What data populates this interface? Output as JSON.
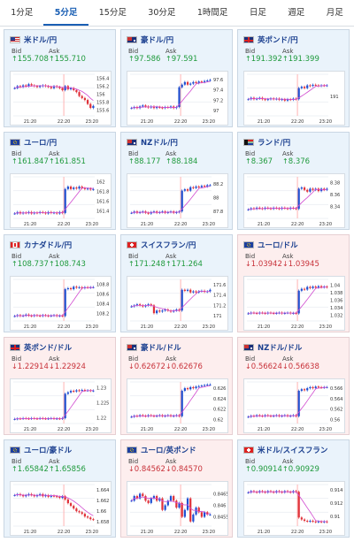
{
  "tabs": [
    {
      "label": "1分足",
      "active": false
    },
    {
      "label": "5分足",
      "active": true
    },
    {
      "label": "15分足",
      "active": false
    },
    {
      "label": "30分足",
      "active": false
    },
    {
      "label": "1時間足",
      "active": false
    },
    {
      "label": "日足",
      "active": false
    },
    {
      "label": "週足",
      "active": false
    },
    {
      "label": "月足",
      "active": false
    }
  ],
  "labels": {
    "bid": "Bid",
    "ask": "Ask"
  },
  "colors": {
    "up": "#1f9a3d",
    "down": "#c8323a",
    "up_bg": "#eaf3fb",
    "down_bg": "#fdeeee",
    "candle_up": "#1f4fd1",
    "candle_down": "#e0323a",
    "ma": "#d14bd0"
  },
  "cards": [
    {
      "pair": "米ドル/円",
      "flag": "us",
      "dir": "up",
      "bid": "155.708",
      "ask": "155.710",
      "chart_data": {
        "type": "candlestick",
        "x_ticks": [
          "21:20",
          "22:20",
          "23:20"
        ],
        "y_ticks": [
          "156.4",
          "156.2",
          "156",
          "155.8",
          "155.6"
        ],
        "ylim": [
          155.45,
          156.5
        ],
        "values": [
          156.15,
          156.2,
          156.18,
          156.22,
          156.2,
          156.25,
          156.22,
          156.2,
          156.18,
          156.2,
          156.22,
          156.2,
          156.18,
          156.15,
          156.2,
          156.18,
          156.15,
          156.1,
          156.2,
          156.12,
          156.15,
          156.1,
          156.05,
          155.95,
          155.9,
          155.85,
          155.75,
          155.65,
          155.7
        ]
      }
    },
    {
      "pair": "豪ドル/円",
      "flag": "au",
      "dir": "up",
      "bid": "97.586",
      "ask": "97.591",
      "chart_data": {
        "type": "candlestick",
        "x_ticks": [
          "21:20",
          "22:20",
          "23:20"
        ],
        "y_ticks": [
          "97.6",
          "97.4",
          "97.2",
          "97"
        ],
        "ylim": [
          96.9,
          97.7
        ],
        "values": [
          97.05,
          97.07,
          97.05,
          97.08,
          97.1,
          97.08,
          97.06,
          97.08,
          97.05,
          97.07,
          97.06,
          97.05,
          97.07,
          97.06,
          97.08,
          97.05,
          97.07,
          97.45,
          97.5,
          97.55,
          97.5,
          97.52,
          97.55,
          97.53,
          97.56,
          97.55,
          97.57,
          97.58,
          97.59
        ]
      }
    },
    {
      "pair": "英ポンド/円",
      "flag": "gb",
      "dir": "up",
      "bid": "191.392",
      "ask": "191.399",
      "chart_data": {
        "type": "candlestick",
        "x_ticks": [
          "21:20",
          "22:20",
          "23:20"
        ],
        "y_ticks": [
          "191"
        ],
        "ylim": [
          190.3,
          191.8
        ],
        "values": [
          190.9,
          190.95,
          190.9,
          190.92,
          190.95,
          190.9,
          190.88,
          190.9,
          190.93,
          190.9,
          190.92,
          190.88,
          190.9,
          190.85,
          190.9,
          190.88,
          190.92,
          190.9,
          191.3,
          191.35,
          191.3,
          191.4,
          191.38,
          191.42,
          191.4,
          191.38,
          191.4,
          191.39,
          191.4
        ]
      }
    },
    {
      "pair": "ユーロ/円",
      "flag": "eu",
      "dir": "up",
      "bid": "161.847",
      "ask": "161.851",
      "chart_data": {
        "type": "candlestick",
        "x_ticks": [
          "21:20",
          "22:20",
          "23:20"
        ],
        "y_ticks": [
          "162",
          "161.8",
          "161.6",
          "161.4"
        ],
        "ylim": [
          161.25,
          162.1
        ],
        "values": [
          161.35,
          161.38,
          161.35,
          161.37,
          161.36,
          161.38,
          161.35,
          161.37,
          161.36,
          161.38,
          161.37,
          161.35,
          161.38,
          161.36,
          161.37,
          161.35,
          161.38,
          161.36,
          161.85,
          161.9,
          161.85,
          161.88,
          161.86,
          161.9,
          161.87,
          161.85,
          161.86,
          161.84,
          161.85
        ]
      }
    },
    {
      "pair": "NZドル/円",
      "flag": "nz",
      "dir": "up",
      "bid": "88.177",
      "ask": "88.184",
      "chart_data": {
        "type": "candlestick",
        "x_ticks": [
          "21:20",
          "22:20",
          "23:20"
        ],
        "y_ticks": [
          "88.2",
          "88",
          "87.8"
        ],
        "ylim": [
          87.7,
          88.3
        ],
        "values": [
          87.78,
          87.8,
          87.78,
          87.79,
          87.8,
          87.78,
          87.77,
          87.79,
          87.8,
          87.78,
          87.79,
          87.8,
          87.78,
          87.79,
          87.8,
          87.78,
          87.79,
          87.8,
          88.1,
          88.12,
          88.1,
          88.15,
          88.14,
          88.16,
          88.15,
          88.17,
          88.16,
          88.18,
          88.18
        ]
      }
    },
    {
      "pair": "ランド/円",
      "flag": "za",
      "dir": "up",
      "bid": "8.367",
      "ask": "8.376",
      "chart_data": {
        "type": "candlestick",
        "x_ticks": [
          "21:20",
          "22:20",
          "23:20"
        ],
        "y_ticks": [
          "8.38",
          "8.36",
          "8.34"
        ],
        "ylim": [
          8.32,
          8.39
        ],
        "values": [
          8.335,
          8.337,
          8.336,
          8.338,
          8.337,
          8.336,
          8.338,
          8.337,
          8.336,
          8.338,
          8.337,
          8.336,
          8.338,
          8.337,
          8.336,
          8.338,
          8.337,
          8.336,
          8.37,
          8.372,
          8.368,
          8.365,
          8.37,
          8.368,
          8.37,
          8.366,
          8.37,
          8.368,
          8.37
        ]
      }
    },
    {
      "pair": "カナダドル/円",
      "flag": "ca",
      "dir": "up",
      "bid": "108.737",
      "ask": "108.743",
      "chart_data": {
        "type": "candlestick",
        "x_ticks": [
          "21:20",
          "22:20",
          "23:20"
        ],
        "y_ticks": [
          "108.8",
          "108.6",
          "108.4",
          "108.2"
        ],
        "ylim": [
          108.05,
          108.9
        ],
        "values": [
          108.15,
          108.17,
          108.15,
          108.16,
          108.18,
          108.16,
          108.15,
          108.17,
          108.16,
          108.15,
          108.17,
          108.16,
          108.15,
          108.16,
          108.17,
          108.15,
          108.16,
          108.15,
          108.7,
          108.72,
          108.7,
          108.75,
          108.73,
          108.74,
          108.72,
          108.74,
          108.73,
          108.74,
          108.74
        ]
      }
    },
    {
      "pair": "スイスフラン/円",
      "flag": "ch",
      "dir": "up",
      "bid": "171.248",
      "ask": "171.264",
      "chart_data": {
        "type": "candlestick",
        "x_ticks": [
          "21:20",
          "22:20",
          "23:20"
        ],
        "y_ticks": [
          "171.6",
          "171.4",
          "171.2",
          "171"
        ],
        "ylim": [
          170.9,
          171.7
        ],
        "values": [
          171.18,
          171.2,
          171.22,
          171.2,
          171.18,
          171.2,
          171.22,
          171.2,
          171.05,
          171.1,
          171.08,
          171.1,
          171.12,
          171.1,
          171.08,
          171.1,
          171.12,
          171.1,
          171.5,
          171.48,
          171.5,
          171.45,
          171.47,
          171.45,
          171.47,
          171.48,
          171.46,
          171.47,
          171.5
        ]
      }
    },
    {
      "pair": "ユーロ/ドル",
      "flag": "eu",
      "dir": "down",
      "bid": "1.03942",
      "ask": "1.03945",
      "chart_data": {
        "type": "candlestick",
        "x_ticks": [
          "21:20",
          "22:20",
          "23:20"
        ],
        "y_ticks": [
          "1.04",
          "1.038",
          "1.036",
          "1.034",
          "1.032"
        ],
        "ylim": [
          1.0305,
          1.0415
        ],
        "values": [
          1.0325,
          1.0327,
          1.0326,
          1.0325,
          1.0327,
          1.0326,
          1.0325,
          1.0327,
          1.0326,
          1.0325,
          1.0326,
          1.0327,
          1.0325,
          1.0326,
          1.0327,
          1.0325,
          1.0326,
          1.0325,
          1.0385,
          1.039,
          1.0388,
          1.0395,
          1.0392,
          1.0396,
          1.0393,
          1.0397,
          1.0394,
          1.0396,
          1.0394
        ]
      }
    },
    {
      "pair": "英ポンド/ドル",
      "flag": "gb",
      "dir": "down",
      "bid": "1.22914",
      "ask": "1.22924",
      "chart_data": {
        "type": "candlestick",
        "x_ticks": [
          "21:20",
          "22:20",
          "23:20"
        ],
        "y_ticks": [
          "1.23",
          "1.225",
          "1.22"
        ],
        "ylim": [
          1.218,
          1.232
        ],
        "values": [
          1.2195,
          1.2197,
          1.2196,
          1.2198,
          1.2197,
          1.2196,
          1.2198,
          1.2197,
          1.2196,
          1.2198,
          1.2197,
          1.2196,
          1.2197,
          1.2198,
          1.2196,
          1.2197,
          1.2196,
          1.2198,
          1.228,
          1.2285,
          1.229,
          1.2288,
          1.2292,
          1.229,
          1.2293,
          1.2291,
          1.2292,
          1.229,
          1.2291
        ]
      }
    },
    {
      "pair": "豪ドル/ドル",
      "flag": "au",
      "dir": "down",
      "bid": "0.62672",
      "ask": "0.62676",
      "chart_data": {
        "type": "candlestick",
        "x_ticks": [
          "21:20",
          "22:20",
          "23:20"
        ],
        "y_ticks": [
          "0.626",
          "0.624",
          "0.622",
          "0.62"
        ],
        "ylim": [
          0.6192,
          0.6272
        ],
        "values": [
          0.6205,
          0.6207,
          0.6206,
          0.6208,
          0.6207,
          0.6206,
          0.6208,
          0.6207,
          0.6206,
          0.6207,
          0.6208,
          0.6206,
          0.6207,
          0.6208,
          0.6206,
          0.6207,
          0.6208,
          0.6206,
          0.6255,
          0.626,
          0.6258,
          0.6262,
          0.626,
          0.6263,
          0.6264,
          0.6265,
          0.6266,
          0.6267,
          0.6267
        ]
      }
    },
    {
      "pair": "NZドル/ドル",
      "flag": "nz",
      "dir": "down",
      "bid": "0.56624",
      "ask": "0.56638",
      "chart_data": {
        "type": "candlestick",
        "x_ticks": [
          "21:20",
          "22:20",
          "23:20"
        ],
        "y_ticks": [
          "0.566",
          "0.564",
          "0.562",
          "0.56"
        ],
        "ylim": [
          0.5592,
          0.5672
        ],
        "values": [
          0.5605,
          0.5607,
          0.5606,
          0.5608,
          0.5607,
          0.5606,
          0.5608,
          0.5607,
          0.5606,
          0.5607,
          0.5608,
          0.5606,
          0.5607,
          0.5608,
          0.5606,
          0.5607,
          0.5608,
          0.5606,
          0.5655,
          0.5658,
          0.5656,
          0.566,
          0.5662,
          0.566,
          0.5663,
          0.5662,
          0.5661,
          0.5662,
          0.5662
        ]
      }
    },
    {
      "pair": "ユーロ/豪ドル",
      "flag": "eu",
      "dir": "up",
      "bid": "1.65842",
      "ask": "1.65856",
      "chart_data": {
        "type": "candlestick",
        "x_ticks": [
          "21:20",
          "22:20",
          "23:20"
        ],
        "y_ticks": [
          "1.664",
          "1.662",
          "1.66",
          "1.658"
        ],
        "ylim": [
          1.6572,
          1.665
        ],
        "values": [
          1.663,
          1.6632,
          1.663,
          1.6628,
          1.663,
          1.6632,
          1.663,
          1.6628,
          1.663,
          1.6632,
          1.6628,
          1.663,
          1.6627,
          1.6629,
          1.6628,
          1.6627,
          1.6625,
          1.6628,
          1.6622,
          1.6615,
          1.661,
          1.6605,
          1.66,
          1.6598,
          1.6595,
          1.659,
          1.6588,
          1.6585,
          1.6584
        ]
      }
    },
    {
      "pair": "ユーロ/英ポンド",
      "flag": "eu",
      "dir": "down",
      "bid": "0.84562",
      "ask": "0.84570",
      "chart_data": {
        "type": "candlestick",
        "x_ticks": [
          "21:20",
          "22:20",
          "23:20"
        ],
        "y_ticks": [
          "0.8465",
          "0.846",
          "0.8455"
        ],
        "ylim": [
          0.8451,
          0.8469
        ],
        "values": [
          0.8462,
          0.8464,
          0.8463,
          0.8465,
          0.8464,
          0.8462,
          0.8461,
          0.8463,
          0.8464,
          0.8462,
          0.8463,
          0.8458,
          0.846,
          0.8462,
          0.8464,
          0.8462,
          0.8459,
          0.8461,
          0.8455,
          0.8458,
          0.8463,
          0.8453,
          0.8456,
          0.8459,
          0.8457,
          0.8455,
          0.8457,
          0.8456,
          0.8456
        ]
      }
    },
    {
      "pair": "米ドル/スイスフラン",
      "flag": "ch",
      "dir": "up",
      "bid": "0.90914",
      "ask": "0.90929",
      "chart_data": {
        "type": "candlestick",
        "x_ticks": [
          "21:20",
          "22:20",
          "23:20"
        ],
        "y_ticks": [
          "0.914",
          "0.912",
          "0.91"
        ],
        "ylim": [
          0.9085,
          0.9148
        ],
        "values": [
          0.9136,
          0.9138,
          0.9137,
          0.9136,
          0.9138,
          0.9137,
          0.9136,
          0.9138,
          0.9137,
          0.9136,
          0.9138,
          0.9137,
          0.9136,
          0.9138,
          0.9137,
          0.9136,
          0.9138,
          0.9137,
          0.9098,
          0.9095,
          0.9093,
          0.9092,
          0.9093,
          0.9092,
          0.9091,
          0.9092,
          0.9091,
          0.9092,
          0.9091
        ]
      }
    }
  ]
}
